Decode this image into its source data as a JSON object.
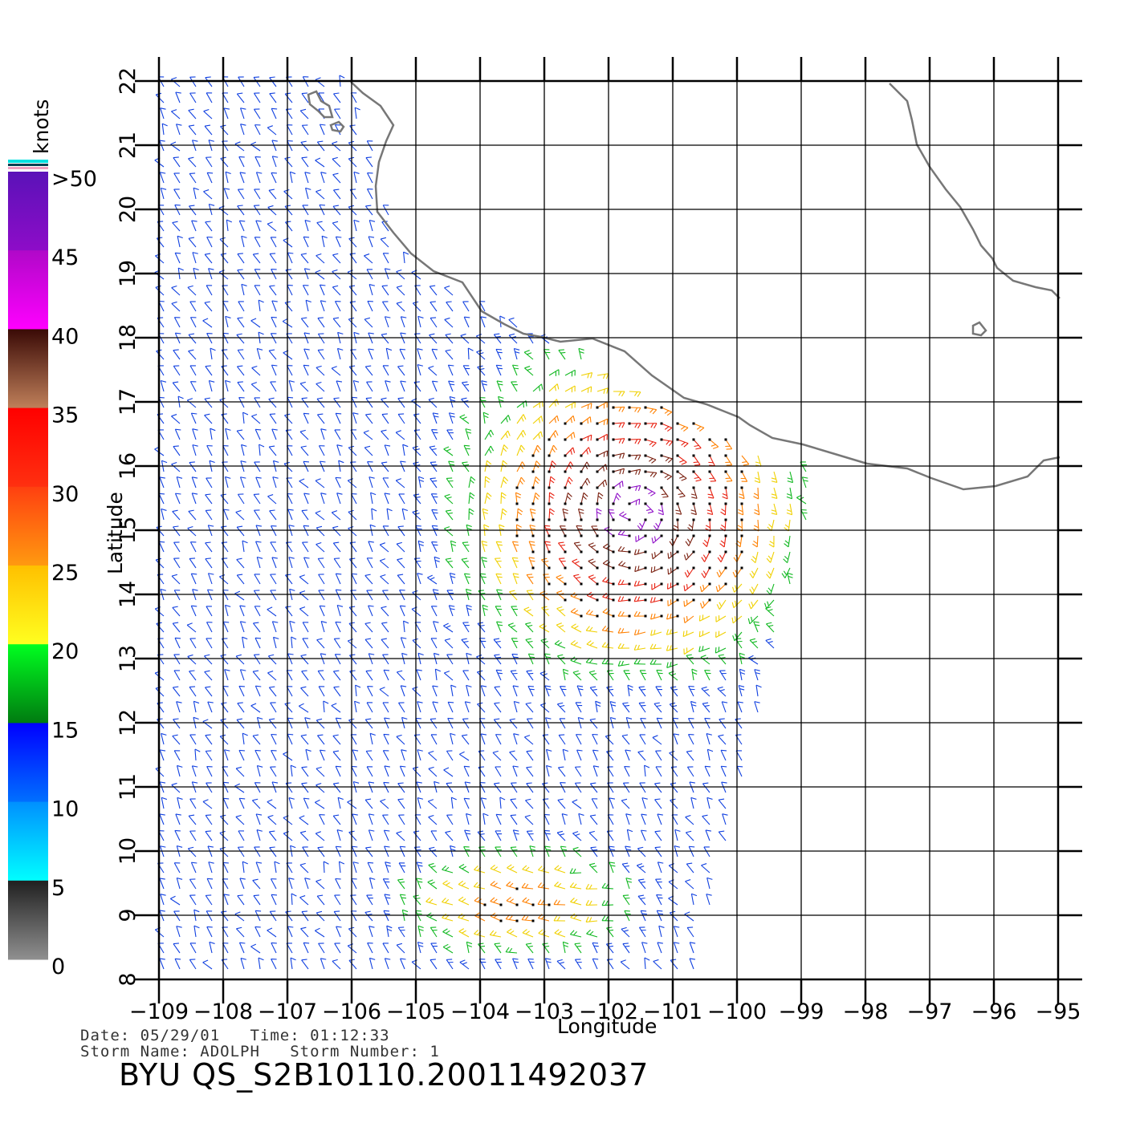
{
  "map": {
    "x_label": "Longitude",
    "y_label": "Latitude",
    "lon_range": [
      -109,
      -95
    ],
    "lat_range": [
      8,
      22
    ],
    "lon_ticks": [
      "−109",
      "−108",
      "−107",
      "−106",
      "−105",
      "−104",
      "−103",
      "−102",
      "−101",
      "−100",
      "−99",
      "−98",
      "−97",
      "−96",
      "−95"
    ],
    "lat_ticks": [
      "8",
      "9",
      "10",
      "11",
      "12",
      "13",
      "14",
      "15",
      "16",
      "17",
      "18",
      "19",
      "20",
      "21",
      "22"
    ],
    "grid": true,
    "coastline_color": "#777777"
  },
  "colorbar": {
    "unit": "knots",
    "labels": [
      ">50",
      "45",
      "40",
      "35",
      "30",
      "25",
      "20",
      "15",
      "10",
      "5",
      "0"
    ],
    "bands": [
      {
        "range": "45-50",
        "top": "#5a12b8",
        "bottom": "#8e0cc8"
      },
      {
        "range": "40-45",
        "top": "#b008c8",
        "bottom": "#ff00ff"
      },
      {
        "range": "35-40",
        "top": "#3a0a06",
        "bottom": "#c0805a"
      },
      {
        "range": "30-35",
        "top": "#ff0000",
        "bottom": "#ff3010"
      },
      {
        "range": "25-30",
        "top": "#ff4010",
        "bottom": "#ff9a10"
      },
      {
        "range": "20-25",
        "top": "#ffc000",
        "bottom": "#ffff20"
      },
      {
        "range": "15-20",
        "top": "#00ff20",
        "bottom": "#007a10"
      },
      {
        "range": "10-15",
        "top": "#0000ff",
        "bottom": "#0070ff"
      },
      {
        "range": "5-10",
        "top": "#0090ff",
        "bottom": "#00ffff"
      },
      {
        "range": "0-5",
        "top": "#202020",
        "bottom": "#909090"
      }
    ]
  },
  "footer": {
    "date_line": "Date: 05/29/01   Time: 01:12:33",
    "storm_line": "Storm Name: ADOLPH   Storm Number: 1",
    "product_id": "BYU QS_S2B10110.20011492037"
  }
}
